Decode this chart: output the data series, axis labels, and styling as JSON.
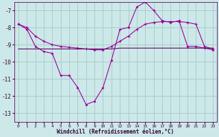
{
  "xlabel": "Windchill (Refroidissement éolien,°C)",
  "background_color": "#cce8e8",
  "grid_color": "#aacccc",
  "line_color": "#990099",
  "x": [
    0,
    1,
    2,
    3,
    4,
    5,
    6,
    7,
    8,
    9,
    10,
    11,
    12,
    13,
    14,
    15,
    16,
    17,
    18,
    19,
    20,
    21,
    22,
    23
  ],
  "line1": [
    -7.8,
    -8.1,
    -9.1,
    -9.4,
    -9.5,
    -10.8,
    -10.8,
    -11.5,
    -12.5,
    -12.3,
    -11.5,
    -9.9,
    -8.1,
    -8.0,
    -6.8,
    -6.5,
    -7.0,
    -7.6,
    -7.7,
    -7.6,
    -9.1,
    -9.1,
    -9.2,
    -9.3
  ],
  "line2": [
    -7.8,
    -8.0,
    -8.5,
    -8.8,
    -9.0,
    -9.1,
    -9.15,
    -9.2,
    -9.25,
    -9.3,
    -9.3,
    -9.1,
    -8.8,
    -8.5,
    -8.1,
    -7.8,
    -7.7,
    -7.65,
    -7.65,
    -7.65,
    -7.7,
    -7.8,
    -9.1,
    -9.25
  ],
  "line3": [
    -9.25,
    -9.25,
    -9.25,
    -9.25,
    -9.25,
    -9.25,
    -9.25,
    -9.25,
    -9.25,
    -9.25,
    -9.25,
    -9.25,
    -9.2,
    -9.2,
    -9.2,
    -9.2,
    -9.2,
    -9.2,
    -9.2,
    -9.2,
    -9.2,
    -9.2,
    -9.2,
    -9.2
  ],
  "ylim": [
    -13.5,
    -6.5
  ],
  "yticks": [
    -13,
    -12,
    -11,
    -10,
    -9,
    -8,
    -7
  ],
  "xticks": [
    0,
    1,
    2,
    3,
    4,
    5,
    6,
    7,
    8,
    9,
    10,
    11,
    12,
    13,
    14,
    15,
    16,
    17,
    18,
    19,
    20,
    21,
    22,
    23
  ]
}
